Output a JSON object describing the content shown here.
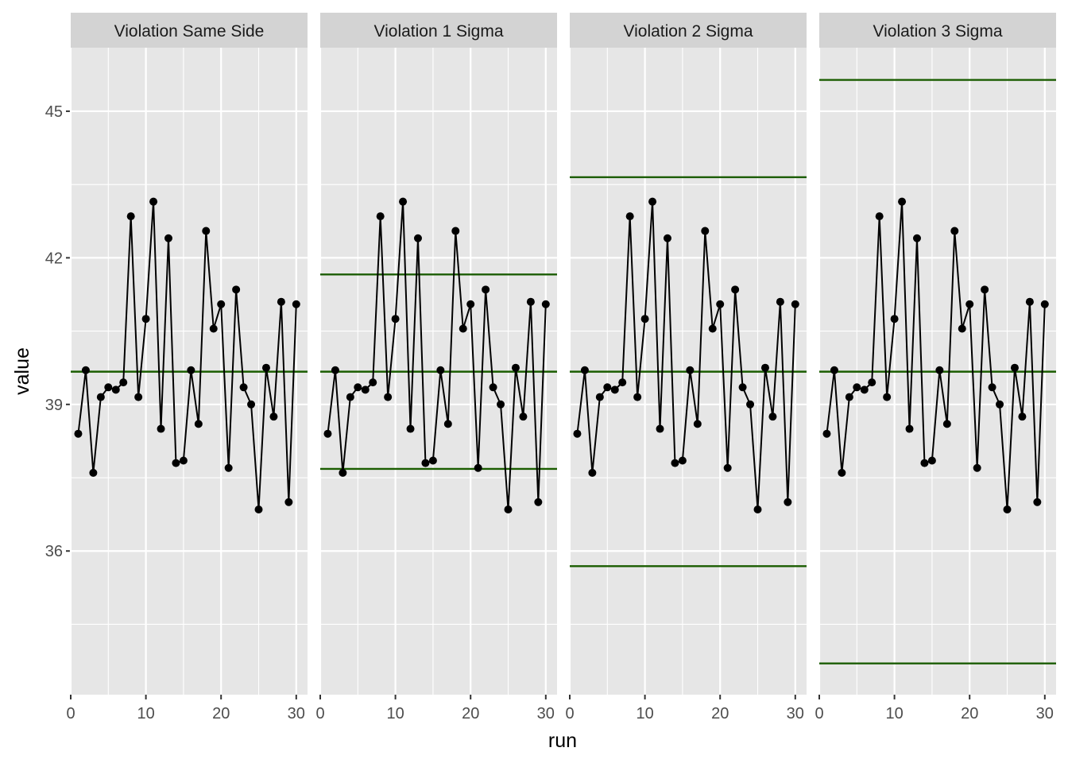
{
  "chart_data": {
    "type": "line",
    "xlabel": "run",
    "ylabel": "value",
    "xlim": [
      0,
      31.5
    ],
    "ylim": [
      33.06,
      46.3
    ],
    "x_ticks": [
      0,
      10,
      20,
      30
    ],
    "y_ticks": [
      36,
      39,
      42,
      45
    ],
    "grid": true,
    "colors": {
      "panel_bg": "#e6e6e6",
      "strip_bg": "#d3d3d3",
      "grid": "#ffffff",
      "limit_line": "#1a5c00",
      "series": "#000000",
      "axis_text": "#4d4d4d",
      "title_text": "#000000"
    },
    "x": [
      1,
      2,
      3,
      4,
      5,
      6,
      7,
      8,
      9,
      10,
      11,
      12,
      13,
      14,
      15,
      16,
      17,
      18,
      19,
      20,
      21,
      22,
      23,
      24,
      25,
      26,
      27,
      28,
      29,
      30
    ],
    "values": [
      38.4,
      39.7,
      37.6,
      39.15,
      39.35,
      39.3,
      39.45,
      42.85,
      39.15,
      40.75,
      43.15,
      38.5,
      42.4,
      37.8,
      37.85,
      39.7,
      38.6,
      42.55,
      40.55,
      41.05,
      37.7,
      41.35,
      39.35,
      39.0,
      36.85,
      39.75,
      38.75,
      41.1,
      37.0,
      41.05
    ],
    "panels": [
      {
        "title": "Violation Same Side",
        "lines": [
          39.67
        ]
      },
      {
        "title": "Violation 1 Sigma",
        "lines": [
          41.66,
          39.67,
          37.68
        ]
      },
      {
        "title": "Violation 2 Sigma",
        "lines": [
          43.65,
          39.67,
          35.69
        ]
      },
      {
        "title": "Violation 3 Sigma",
        "lines": [
          45.64,
          39.67,
          33.7
        ]
      }
    ]
  }
}
